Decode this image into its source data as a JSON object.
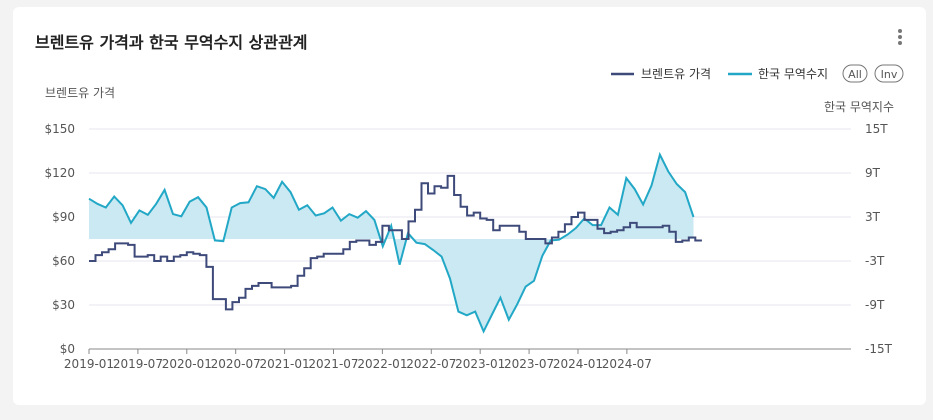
{
  "card": {
    "title": "브렌트유 가격과 한국 무역수지 상관관계"
  },
  "legend": {
    "all_label": "All",
    "inv_label": "Inv"
  },
  "colors": {
    "price": "#3d4a7a",
    "trade": "#22a8c6",
    "area": "#cbe9f2",
    "grid": "#e6e6ef",
    "text": "#555555"
  },
  "chart_data": {
    "type": "line",
    "xlabel": "",
    "x_ticks": [
      "2019-01",
      "2019-07",
      "2020-01",
      "2020-07",
      "2021-01",
      "2021-07",
      "2022-01",
      "2022-07",
      "2023-01",
      "2023-07",
      "2024-01",
      "2024-07"
    ],
    "y_left": {
      "label": "브렌트유 가격",
      "range": [
        0,
        150
      ],
      "ticks": [
        "$0",
        "$30",
        "$60",
        "$90",
        "$120",
        "$150"
      ]
    },
    "y_right": {
      "label": "한국 무역지수",
      "range": [
        -15,
        15
      ],
      "ticks": [
        "-15T",
        "-9T",
        "-3T",
        "3T",
        "9T",
        "15T"
      ]
    },
    "series": [
      {
        "name": "브렌트유 가격",
        "axis": "left",
        "step": true,
        "values": [
          60,
          64,
          66,
          68,
          72,
          72,
          71,
          63,
          63,
          64,
          60,
          63,
          60,
          63,
          64,
          66,
          65,
          64,
          56,
          34,
          34,
          27,
          32,
          35,
          41,
          43,
          45,
          45,
          42,
          42,
          42,
          43,
          50,
          55,
          62,
          63,
          65,
          65,
          65,
          68,
          73,
          74,
          74,
          71,
          73,
          84,
          81,
          81,
          75,
          87,
          95,
          113,
          106,
          111,
          110,
          118,
          105,
          97,
          91,
          93,
          89,
          88,
          81,
          84,
          84,
          84,
          80,
          75,
          75,
          75,
          72,
          76,
          80,
          85,
          90,
          93,
          88,
          88,
          82,
          79,
          80,
          81,
          83,
          86,
          83,
          83,
          83,
          83,
          84,
          80,
          73,
          74,
          76,
          74
        ]
      },
      {
        "name": "한국 무역수지",
        "axis": "right",
        "step": false,
        "values": [
          5.5,
          4.8,
          4.3,
          5.8,
          4.6,
          2.2,
          3.9,
          3.3,
          4.8,
          6.7,
          3.4,
          3.1,
          5.1,
          5.7,
          4.3,
          -0.2,
          -0.3,
          4.3,
          4.9,
          5.0,
          7.2,
          6.8,
          5.6,
          7.8,
          6.4,
          4.0,
          4.6,
          3.2,
          3.5,
          4.3,
          2.5,
          3.4,
          2.9,
          3.8,
          2.6,
          -1.0,
          1.8,
          -3.5,
          0.8,
          -0.5,
          -0.7,
          -1.5,
          -2.4,
          -5.4,
          -9.9,
          -10.4,
          -9.9,
          -12.6,
          -10.3,
          -8.0,
          -11.0,
          -8.9,
          -6.5,
          -5.7,
          -2.3,
          -0.2,
          -0.1,
          0.6,
          1.5,
          2.8,
          1.9,
          1.9,
          4.3,
          3.3,
          8.3,
          6.8,
          4.7,
          7.3,
          11.5,
          9.2,
          7.5,
          6.4,
          3.0
        ],
        "x_offset": 0
      }
    ]
  }
}
